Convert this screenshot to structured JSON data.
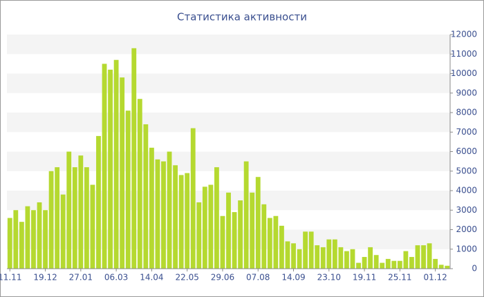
{
  "chart_data": {
    "type": "bar",
    "title": "Статистика активности",
    "categories": [
      "11.11",
      null,
      null,
      null,
      null,
      null,
      "19.12",
      null,
      null,
      null,
      null,
      null,
      "27.01",
      null,
      null,
      null,
      null,
      null,
      "06.03",
      null,
      null,
      null,
      null,
      null,
      "14.04",
      null,
      null,
      null,
      null,
      null,
      "22.05",
      null,
      null,
      null,
      null,
      null,
      "29.06",
      null,
      null,
      null,
      null,
      null,
      "07.08",
      null,
      null,
      null,
      null,
      null,
      "14.09",
      null,
      null,
      null,
      null,
      null,
      "23.10",
      null,
      null,
      null,
      null,
      null,
      "19.11",
      null,
      null,
      null,
      null,
      null,
      "25.11",
      null,
      null,
      null,
      null,
      null,
      "01.12",
      null,
      null
    ],
    "values": [
      2600,
      3000,
      2400,
      3200,
      3000,
      3400,
      3000,
      5000,
      5200,
      3800,
      6000,
      5200,
      5800,
      5200,
      4300,
      6800,
      10500,
      10200,
      10700,
      9800,
      8100,
      11300,
      8700,
      7400,
      6200,
      5600,
      5500,
      6000,
      5300,
      4800,
      4900,
      7200,
      3400,
      4200,
      4300,
      5200,
      2700,
      3900,
      2900,
      3500,
      5500,
      3900,
      4700,
      3300,
      2600,
      2700,
      2200,
      1400,
      1300,
      1000,
      1900,
      1900,
      1200,
      1100,
      1500,
      1500,
      1100,
      900,
      1000,
      300,
      600,
      1100,
      700,
      300,
      500,
      400,
      400,
      900,
      600,
      1200,
      1200,
      1300,
      500,
      200,
      150
    ],
    "color": "#b5d930",
    "ylim": [
      0,
      12000
    ],
    "yticks": [
      0,
      1000,
      2000,
      3000,
      4000,
      5000,
      6000,
      7000,
      8000,
      9000,
      10000,
      11000,
      12000
    ],
    "grid": "bands",
    "y_axis_side": "right"
  }
}
